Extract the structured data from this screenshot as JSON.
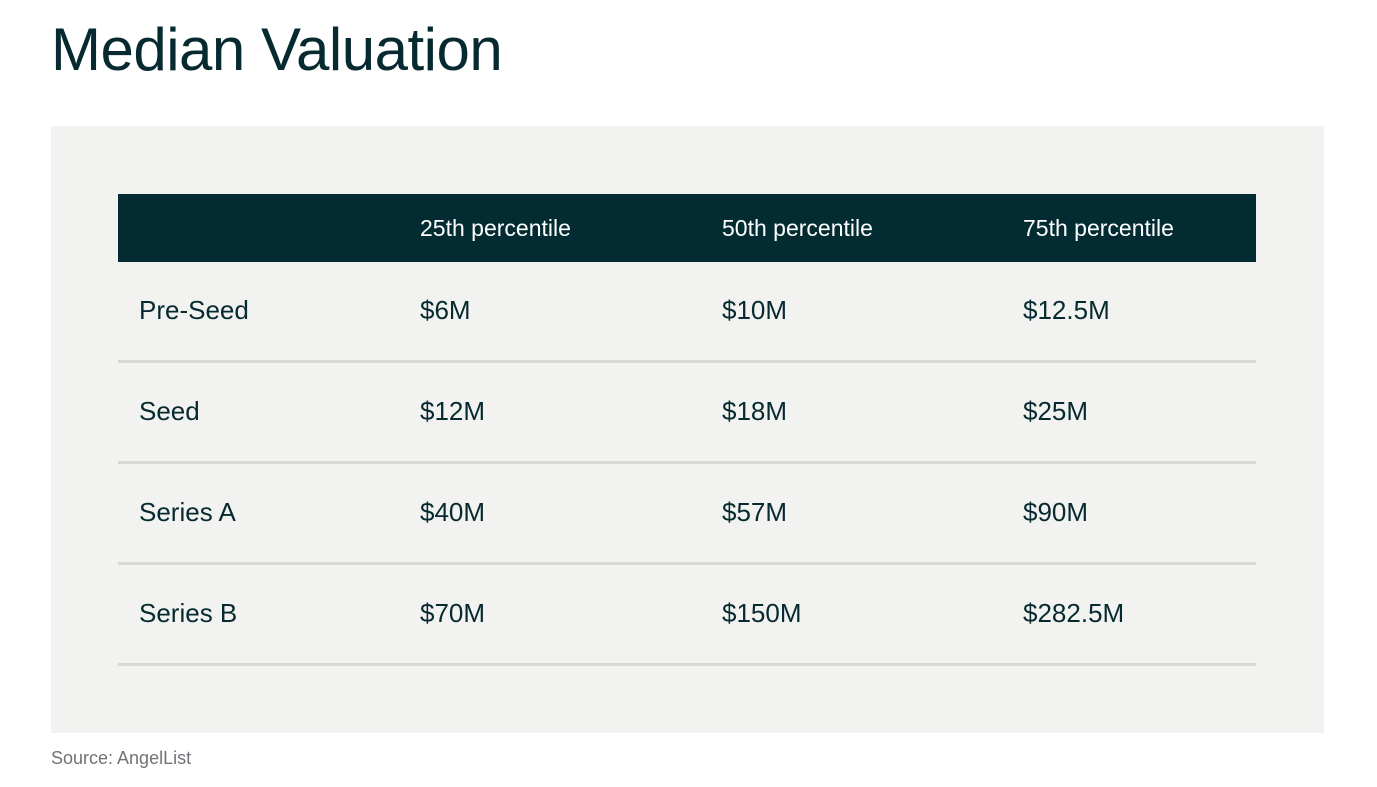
{
  "title": "Median Valuation",
  "source": "Source: AngelList",
  "colors": {
    "header_bg": "#022b32",
    "panel_bg": "#f2f2f0",
    "text": "#062a30",
    "divider": "#d8d8d6"
  },
  "chart_data": {
    "type": "table",
    "title": "Median Valuation",
    "columns": [
      "",
      "25th percentile",
      "50th percentile",
      "75th percentile"
    ],
    "rows": [
      {
        "label": "Pre-Seed",
        "values": [
          "$6M",
          "$10M",
          "$12.5M"
        ]
      },
      {
        "label": "Seed",
        "values": [
          "$12M",
          "$18M",
          "$25M"
        ]
      },
      {
        "label": "Series A",
        "values": [
          "$40M",
          "$57M",
          "$90M"
        ]
      },
      {
        "label": "Series B",
        "values": [
          "$70M",
          "$150M",
          "$282.5M"
        ]
      }
    ],
    "source": "Source: AngelList"
  }
}
